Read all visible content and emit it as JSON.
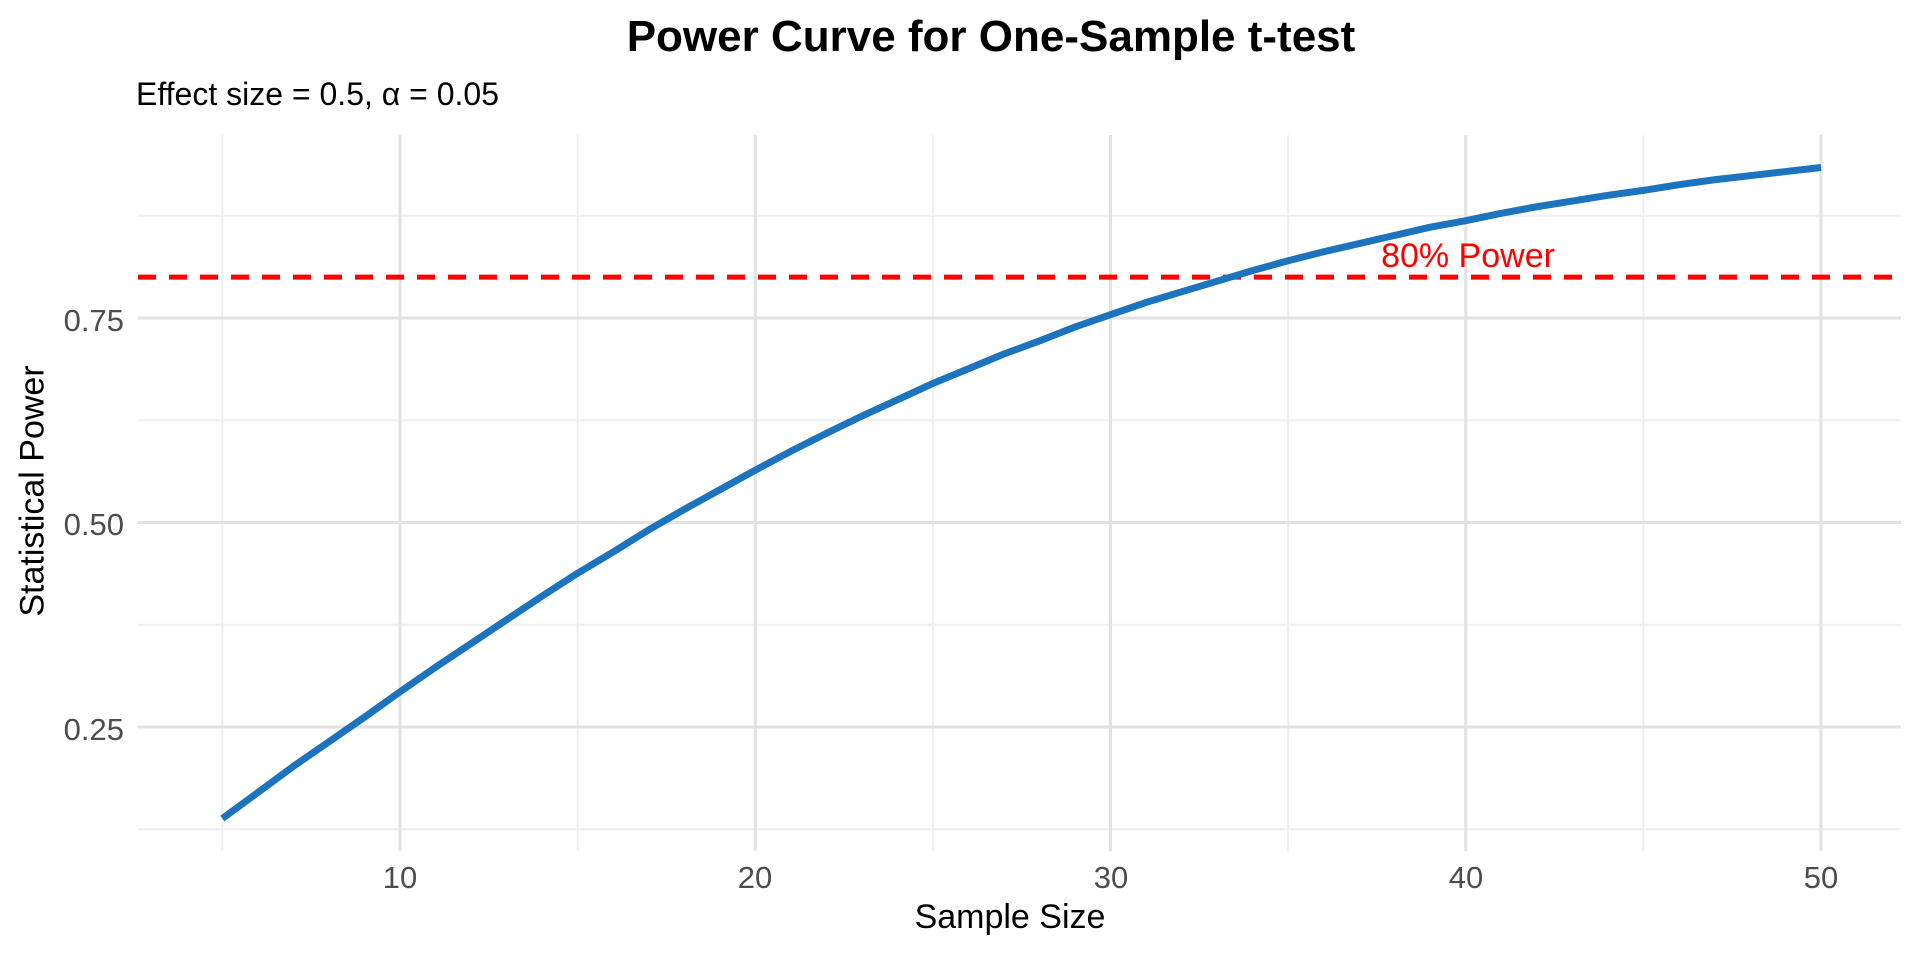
{
  "chart_data": {
    "type": "line",
    "title": "Power Curve for One-Sample t-test",
    "subtitle": "Effect size = 0.5, α = 0.05",
    "xlabel": "Sample Size",
    "ylabel": "Statistical Power",
    "x_ticks": [
      10,
      20,
      30,
      40,
      50
    ],
    "x_tick_labels": [
      "10",
      "20",
      "30",
      "40",
      "50"
    ],
    "x_minor_ticks": [
      5,
      15,
      25,
      35,
      45
    ],
    "y_ticks": [
      0.25,
      0.5,
      0.75
    ],
    "y_tick_labels": [
      "0.25",
      "0.50",
      "0.75"
    ],
    "y_minor_ticks": [
      0.125,
      0.375,
      0.625,
      0.875
    ],
    "xlim": [
      2.75,
      52.25
    ],
    "ylim": [
      0.098,
      0.974
    ],
    "grid": true,
    "legend": "none",
    "series": [
      {
        "name": "statistical-power",
        "color": "#1C73BE",
        "x": [
          5,
          6,
          7,
          8,
          9,
          10,
          11,
          12,
          13,
          14,
          15,
          16,
          17,
          18,
          19,
          20,
          21,
          22,
          23,
          24,
          25,
          26,
          27,
          28,
          29,
          30,
          31,
          32,
          33,
          34,
          35,
          36,
          37,
          38,
          39,
          40,
          41,
          42,
          43,
          44,
          45,
          46,
          47,
          48,
          49,
          50
        ],
        "y": [
          0.138,
          0.17,
          0.202,
          0.232,
          0.262,
          0.293,
          0.323,
          0.352,
          0.381,
          0.41,
          0.438,
          0.464,
          0.491,
          0.516,
          0.54,
          0.564,
          0.587,
          0.609,
          0.63,
          0.65,
          0.67,
          0.688,
          0.706,
          0.722,
          0.739,
          0.754,
          0.769,
          0.782,
          0.795,
          0.808,
          0.82,
          0.831,
          0.841,
          0.851,
          0.861,
          0.869,
          0.878,
          0.886,
          0.893,
          0.9,
          0.906,
          0.913,
          0.919,
          0.924,
          0.929,
          0.934
        ]
      }
    ],
    "reference_line": {
      "y": 0.8,
      "label": "80% Power",
      "color": "#FF0000",
      "style": "dashed"
    },
    "colors": {
      "curve": "#1C73BE",
      "reference": "#FF0000",
      "grid_major": "#E2E2E2",
      "grid_minor": "#EFEFEF",
      "tick_text": "#4D4D4D",
      "axis_text": "#000000",
      "background": "#FFFFFF"
    }
  }
}
